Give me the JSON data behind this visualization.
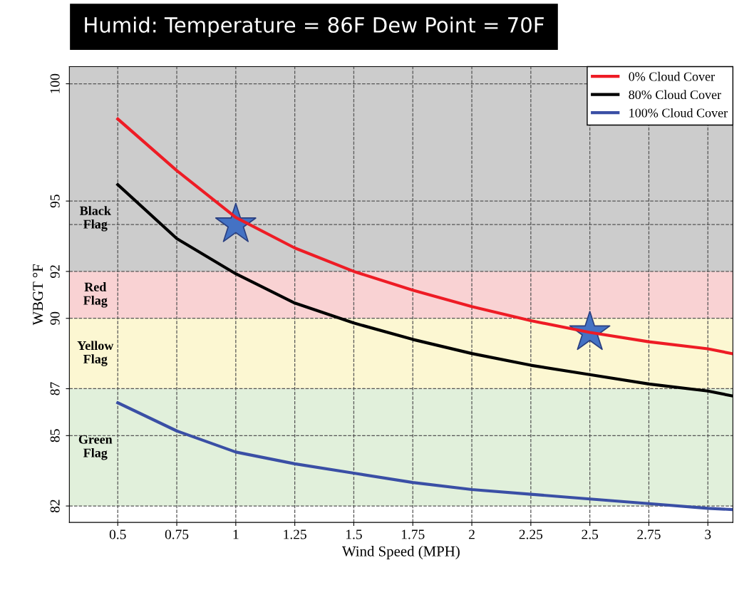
{
  "chart_data": {
    "type": "line",
    "title": "Humid: Temperature = 86F Dew Point = 70F",
    "xlabel": "Wind Speed (MPH)",
    "ylabel": "WBGT °F",
    "xlim": [
      0.295,
      3.106
    ],
    "ylim": [
      81.3,
      100.73
    ],
    "xticks": [
      0.5,
      0.75,
      1,
      1.25,
      1.5,
      1.75,
      2,
      2.25,
      2.5,
      2.75,
      3
    ],
    "yticks": [
      82,
      85,
      87,
      90,
      92,
      95,
      100
    ],
    "grid": true,
    "legend": "top right",
    "line_style": "solid",
    "series": [
      {
        "name": "0% Cloud Cover",
        "color": "#ee1c25",
        "x": [
          0.5,
          0.75,
          1,
          1.25,
          1.5,
          1.75,
          2,
          2.25,
          2.5,
          2.75,
          3,
          3.1
        ],
        "values": [
          98.5,
          96.3,
          94.3,
          93.0,
          92.0,
          91.2,
          90.5,
          89.9,
          89.4,
          89.0,
          88.7,
          88.5
        ]
      },
      {
        "name": "80% Cloud Cover",
        "color": "#000000",
        "x": [
          0.5,
          0.75,
          1,
          1.25,
          1.5,
          1.75,
          2,
          2.25,
          2.5,
          2.75,
          3,
          3.1
        ],
        "values": [
          95.7,
          93.4,
          91.9,
          90.65,
          89.8,
          89.1,
          88.5,
          88.0,
          87.6,
          87.2,
          86.9,
          86.7
        ]
      },
      {
        "name": "100% Cloud Cover",
        "color": "#3a4fa5",
        "x": [
          0.5,
          0.75,
          1,
          1.25,
          1.5,
          1.75,
          2,
          2.25,
          2.5,
          2.75,
          3,
          3.1
        ],
        "values": [
          86.4,
          85.2,
          84.3,
          83.8,
          83.4,
          83.0,
          82.7,
          82.5,
          82.3,
          82.1,
          81.9,
          81.85
        ]
      },
      {
        "type": "scatter",
        "marker": "star",
        "color": "#4472c4",
        "x": [
          1,
          2.5
        ],
        "values": [
          94.0,
          89.4
        ]
      }
    ],
    "bands": [
      {
        "axis": "y",
        "from": 92,
        "to": 100.73,
        "label": "Black\nFlag",
        "color": "#cccccc"
      },
      {
        "axis": "y",
        "from": 90,
        "to": 92,
        "label": "Red\nFlag",
        "color": "#f9d2d3"
      },
      {
        "axis": "y",
        "from": 87,
        "to": 90,
        "label": "Yellow\nFlag",
        "color": "#fcf7d2"
      },
      {
        "axis": "y",
        "from": 82,
        "to": 87,
        "label": "Green\nFlag",
        "color": "#e1f0db"
      }
    ],
    "ref_lines": [
      {
        "axis": "y",
        "value": 94.0,
        "line_style": "dashed",
        "color": "#555555"
      }
    ]
  }
}
